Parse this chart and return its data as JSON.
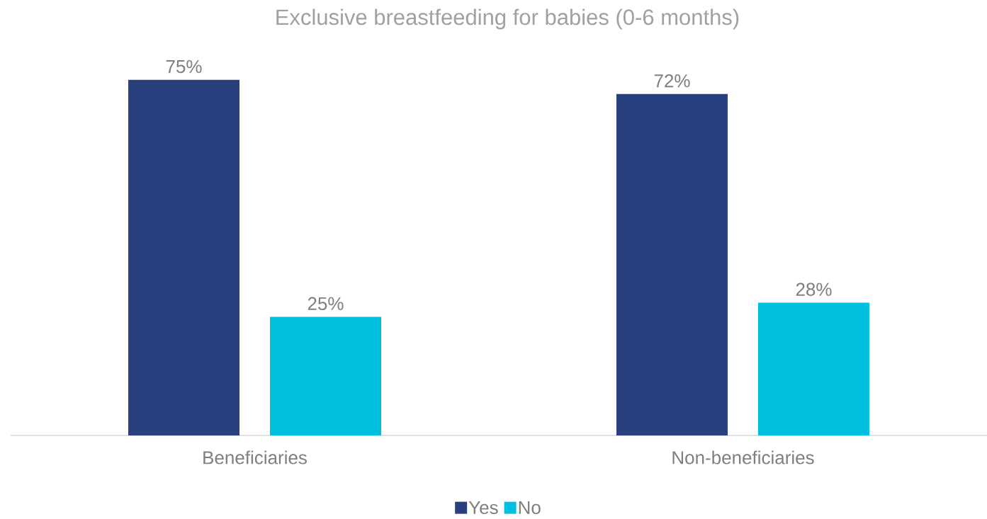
{
  "chart_data": {
    "type": "bar",
    "title": "Exclusive breastfeeding for babies (0-6 months)",
    "categories": [
      "Beneficiaries",
      "Non-beneficiaries"
    ],
    "series": [
      {
        "name": "Yes",
        "color": "#28407e",
        "values": [
          75,
          72
        ],
        "value_labels": [
          "75%",
          "72%"
        ]
      },
      {
        "name": "No",
        "color": "#00c0e0",
        "values": [
          25,
          28
        ],
        "value_labels": [
          "25%",
          "28%"
        ]
      }
    ],
    "legend": "bottom"
  }
}
